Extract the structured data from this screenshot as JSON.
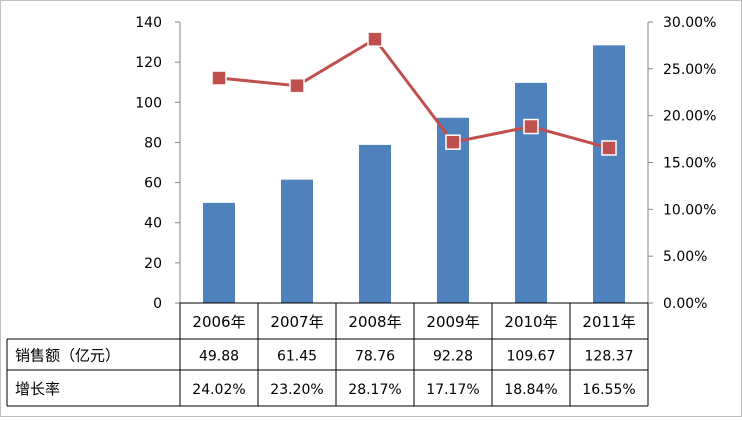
{
  "chart_data": {
    "type": "bar",
    "categories": [
      "2006年",
      "2007年",
      "2008年",
      "2009年",
      "2010年",
      "2011年"
    ],
    "series": [
      {
        "name": "销售额（亿元）",
        "type": "bar",
        "axis": "left",
        "color": "#4f81bd",
        "values": [
          49.88,
          61.45,
          78.76,
          92.28,
          109.67,
          128.37
        ],
        "value_labels": [
          "49.88",
          "61.45",
          "78.76",
          "92.28",
          "109.67",
          "128.37"
        ]
      },
      {
        "name": "增长率",
        "type": "line",
        "axis": "right",
        "color": "#c0504d",
        "values": [
          24.02,
          23.2,
          28.17,
          17.17,
          18.84,
          16.55
        ],
        "value_labels": [
          "24.02%",
          "23.20%",
          "28.17%",
          "17.17%",
          "18.84%",
          "16.55%"
        ]
      }
    ],
    "y_left": {
      "ylim": [
        0,
        140
      ],
      "ticks": [
        "0",
        "20",
        "40",
        "60",
        "80",
        "100",
        "120",
        "140"
      ]
    },
    "y_right": {
      "ylim": [
        0,
        30
      ],
      "ticks": [
        "0.00%",
        "5.00%",
        "10.00%",
        "15.00%",
        "20.00%",
        "25.00%",
        "30.00%"
      ]
    },
    "grid": false,
    "legend": "data-table",
    "title": "",
    "xlabel": "",
    "ylabel": ""
  }
}
